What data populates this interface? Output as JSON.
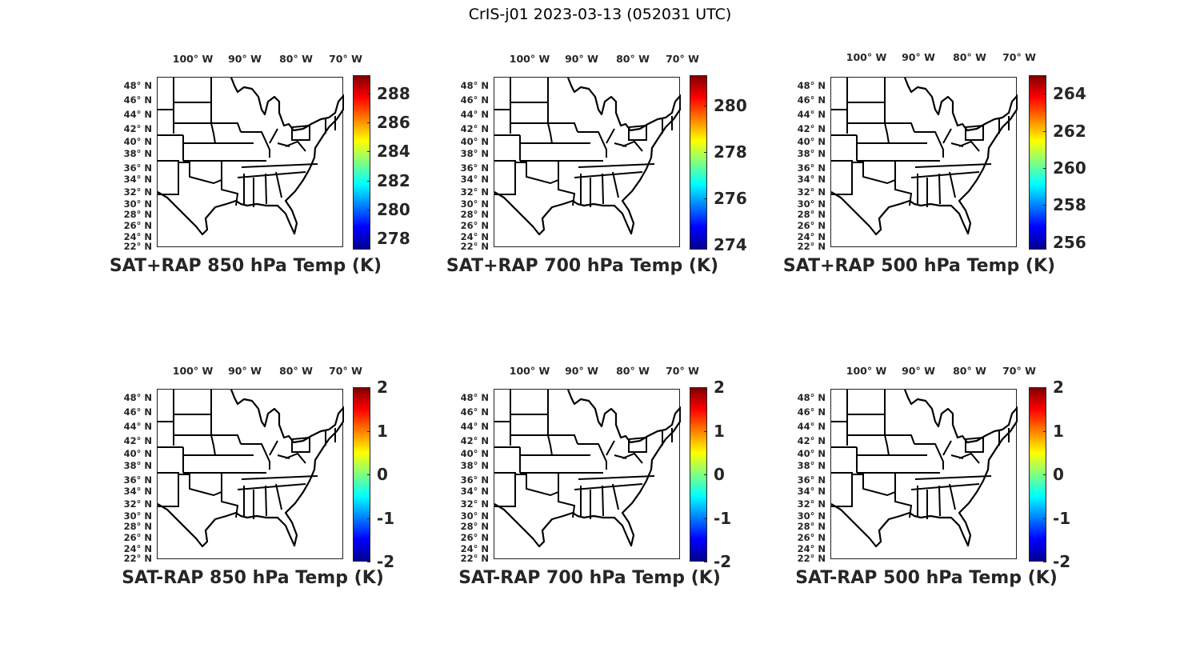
{
  "figure_title": "CrIS-j01 2023-03-13 (052031 UTC)",
  "lon_labels": [
    "100° W",
    "90° W",
    "80° W",
    "70° W"
  ],
  "lat_labels": [
    "48° N",
    "46° N",
    "44° N",
    "42° N",
    "40° N",
    "38° N",
    "36° N",
    "34° N",
    "32° N",
    "30° N",
    "28° N",
    "26° N",
    "24° N",
    "22° N"
  ],
  "colormap": "jet",
  "panels": [
    {
      "title": "SAT+RAP 850 hPa Temp (K)",
      "colorbar": {
        "range": [
          277.2,
          289.3
        ],
        "ticks": [
          "278",
          "280",
          "282",
          "284",
          "286",
          "288"
        ]
      }
    },
    {
      "title": "SAT+RAP 700 hPa Temp (K)",
      "colorbar": {
        "range": [
          273.8,
          281.3
        ],
        "ticks": [
          "274",
          "276",
          "278",
          "280"
        ]
      }
    },
    {
      "title": "SAT+RAP 500 hPa Temp (K)",
      "colorbar": {
        "range": [
          255.6,
          265.0
        ],
        "ticks": [
          "256",
          "258",
          "260",
          "262",
          "264"
        ]
      }
    },
    {
      "title": "SAT-RAP 850 hPa Temp (K)",
      "colorbar": {
        "range": [
          -2,
          2
        ],
        "ticks": [
          "-2",
          "-1",
          "0",
          "1",
          "2"
        ]
      }
    },
    {
      "title": "SAT-RAP 700 hPa Temp (K)",
      "colorbar": {
        "range": [
          -2,
          2
        ],
        "ticks": [
          "-2",
          "-1",
          "0",
          "1",
          "2"
        ]
      }
    },
    {
      "title": "SAT-RAP 500 hPa Temp (K)",
      "colorbar": {
        "range": [
          -2,
          2
        ],
        "ticks": [
          "-2",
          "-1",
          "0",
          "1",
          "2"
        ]
      }
    }
  ]
}
